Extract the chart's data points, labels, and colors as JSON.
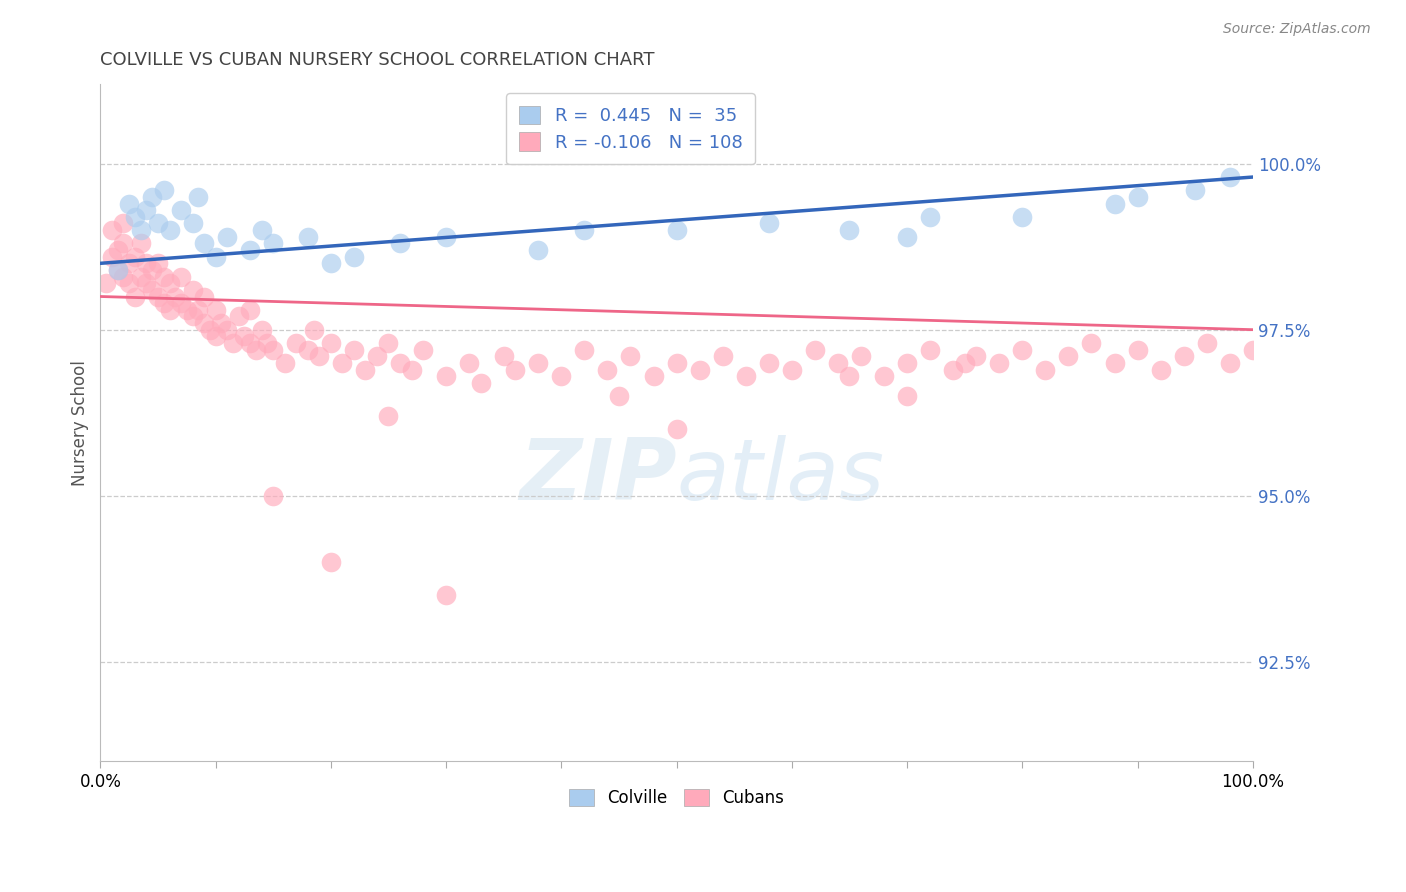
{
  "title": "COLVILLE VS CUBAN NURSERY SCHOOL CORRELATION CHART",
  "source_text": "Source: ZipAtlas.com",
  "ylabel": "Nursery School",
  "xmin": 0.0,
  "xmax": 100.0,
  "ymin": 91.0,
  "ymax": 101.2,
  "colville_R": 0.445,
  "colville_N": 35,
  "cubans_R": -0.106,
  "cubans_N": 108,
  "colville_color": "#aaccee",
  "colville_line_color": "#3366bb",
  "cubans_color": "#ffaabb",
  "cubans_line_color": "#ee6688",
  "right_yticks": [
    92.5,
    95.0,
    97.5,
    100.0
  ],
  "right_ytick_labels": [
    "92.5%",
    "95.0%",
    "97.5%",
    "100.0%"
  ],
  "legend_label_colville": "Colville",
  "legend_label_cubans": "Cubans",
  "colville_x": [
    1.5,
    2.5,
    3.0,
    3.5,
    4.0,
    4.5,
    5.0,
    5.5,
    6.0,
    7.0,
    8.0,
    8.5,
    9.0,
    10.0,
    11.0,
    13.0,
    14.0,
    15.0,
    18.0,
    20.0,
    22.0,
    26.0,
    30.0,
    38.0,
    42.0,
    50.0,
    58.0,
    65.0,
    70.0,
    72.0,
    80.0,
    88.0,
    90.0,
    95.0,
    98.0
  ],
  "colville_y": [
    98.4,
    99.4,
    99.2,
    99.0,
    99.3,
    99.5,
    99.1,
    99.6,
    99.0,
    99.3,
    99.1,
    99.5,
    98.8,
    98.6,
    98.9,
    98.7,
    99.0,
    98.8,
    98.9,
    98.5,
    98.6,
    98.8,
    98.9,
    98.7,
    99.0,
    99.0,
    99.1,
    99.0,
    98.9,
    99.2,
    99.2,
    99.4,
    99.5,
    99.6,
    99.8
  ],
  "cubans_x": [
    0.5,
    1.0,
    1.0,
    1.5,
    1.5,
    2.0,
    2.0,
    2.0,
    2.5,
    2.5,
    3.0,
    3.0,
    3.5,
    3.5,
    4.0,
    4.0,
    4.5,
    4.5,
    5.0,
    5.0,
    5.5,
    5.5,
    6.0,
    6.0,
    6.5,
    7.0,
    7.0,
    7.5,
    8.0,
    8.0,
    8.5,
    9.0,
    9.0,
    9.5,
    10.0,
    10.0,
    10.5,
    11.0,
    11.5,
    12.0,
    12.5,
    13.0,
    13.0,
    13.5,
    14.0,
    14.5,
    15.0,
    16.0,
    17.0,
    18.0,
    18.5,
    19.0,
    20.0,
    21.0,
    22.0,
    23.0,
    24.0,
    25.0,
    26.0,
    27.0,
    28.0,
    30.0,
    32.0,
    33.0,
    35.0,
    36.0,
    38.0,
    40.0,
    42.0,
    44.0,
    46.0,
    48.0,
    50.0,
    52.0,
    54.0,
    56.0,
    58.0,
    60.0,
    62.0,
    64.0,
    66.0,
    68.0,
    70.0,
    72.0,
    74.0,
    76.0,
    78.0,
    80.0,
    82.0,
    84.0,
    86.0,
    88.0,
    90.0,
    92.0,
    94.0,
    96.0,
    98.0,
    100.0,
    15.0,
    20.0,
    25.0,
    30.0,
    45.0,
    50.0,
    65.0,
    70.0,
    75.0
  ],
  "cubans_y": [
    98.2,
    98.6,
    99.0,
    98.4,
    98.7,
    98.3,
    98.8,
    99.1,
    98.5,
    98.2,
    98.0,
    98.6,
    98.3,
    98.8,
    98.2,
    98.5,
    98.1,
    98.4,
    98.0,
    98.5,
    97.9,
    98.3,
    97.8,
    98.2,
    98.0,
    97.9,
    98.3,
    97.8,
    97.7,
    98.1,
    97.8,
    97.6,
    98.0,
    97.5,
    97.4,
    97.8,
    97.6,
    97.5,
    97.3,
    97.7,
    97.4,
    97.3,
    97.8,
    97.2,
    97.5,
    97.3,
    97.2,
    97.0,
    97.3,
    97.2,
    97.5,
    97.1,
    97.3,
    97.0,
    97.2,
    96.9,
    97.1,
    97.3,
    97.0,
    96.9,
    97.2,
    96.8,
    97.0,
    96.7,
    97.1,
    96.9,
    97.0,
    96.8,
    97.2,
    96.9,
    97.1,
    96.8,
    97.0,
    96.9,
    97.1,
    96.8,
    97.0,
    96.9,
    97.2,
    97.0,
    97.1,
    96.8,
    97.0,
    97.2,
    96.9,
    97.1,
    97.0,
    97.2,
    96.9,
    97.1,
    97.3,
    97.0,
    97.2,
    96.9,
    97.1,
    97.3,
    97.0,
    97.2,
    95.0,
    94.0,
    96.2,
    93.5,
    96.5,
    96.0,
    96.8,
    96.5,
    97.0
  ]
}
